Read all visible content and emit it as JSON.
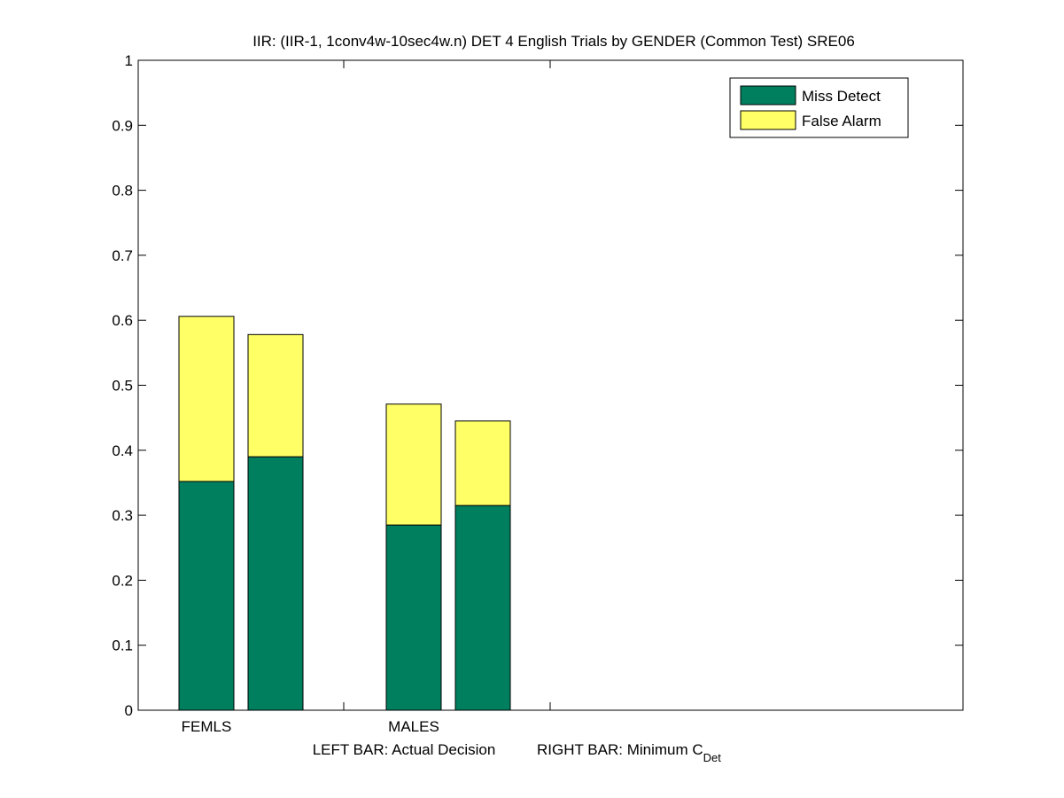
{
  "chart_data": {
    "type": "bar",
    "stacked": true,
    "title": "IIR: (IIR-1, 1conv4w-10sec4w.n) DET 4 English Trials by GENDER (Common Test) SRE06",
    "xlabel": {
      "left": "LEFT BAR: Actual Decision",
      "right_prefix": "RIGHT BAR: Minimum C",
      "right_subscript": "Det"
    },
    "ylabel": "",
    "ylim": [
      0,
      1
    ],
    "yticks": [
      "0",
      "0.1",
      "0.2",
      "0.3",
      "0.4",
      "0.5",
      "0.6",
      "0.7",
      "0.8",
      "0.9",
      "1"
    ],
    "categories": [
      "FEMLS",
      "MALES"
    ],
    "bars_per_category": [
      "Actual Decision",
      "Minimum C_Det"
    ],
    "series": [
      {
        "name": "Miss Detect",
        "color": "#007f5f",
        "values": [
          [
            0.352,
            0.39
          ],
          [
            0.285,
            0.315
          ]
        ]
      },
      {
        "name": "False Alarm",
        "color": "#ffff66",
        "values": [
          [
            0.254,
            0.188
          ],
          [
            0.186,
            0.13
          ]
        ]
      }
    ],
    "legend_position": "top-right",
    "grid": false
  }
}
